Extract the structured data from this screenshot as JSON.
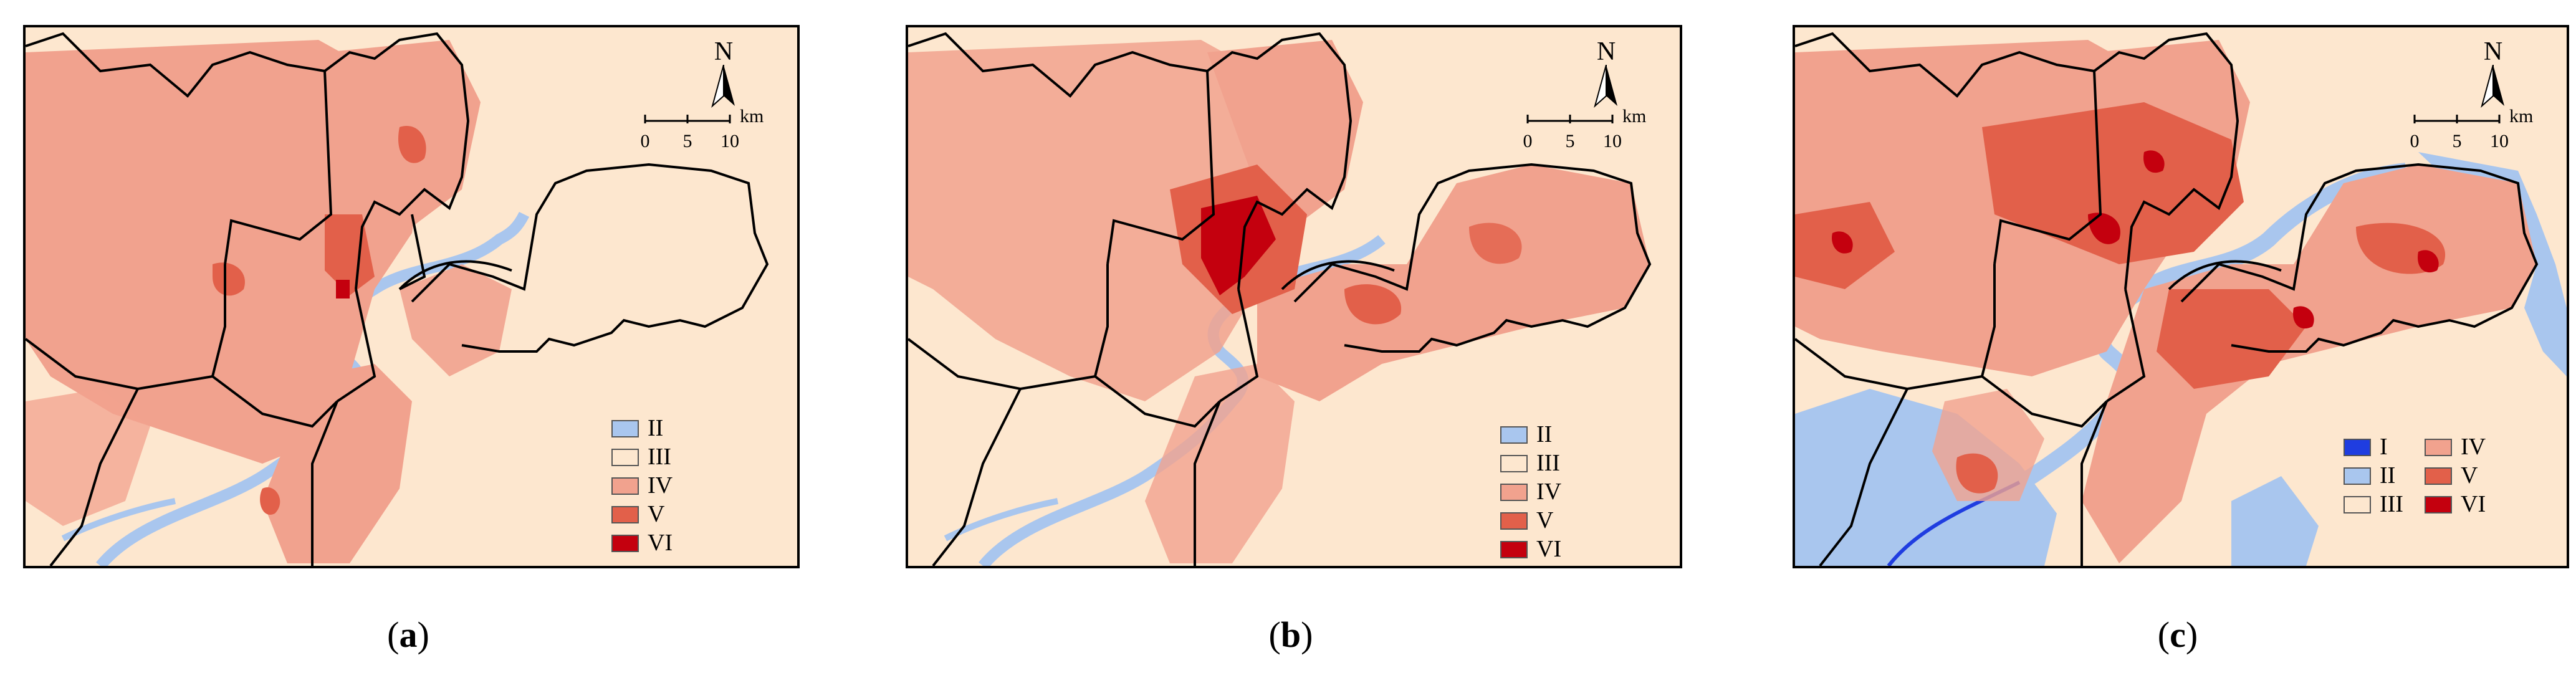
{
  "panels": [
    {
      "id": "a",
      "caption_letter": "a",
      "north_label": "N",
      "scale": {
        "ticks": [
          "0",
          "5",
          "10"
        ],
        "unit": "km"
      },
      "legend": [
        {
          "label": "II",
          "color": "#a9c6ee"
        },
        {
          "label": "III",
          "color": "#fde7cf"
        },
        {
          "label": "IV",
          "color": "#f1a28e"
        },
        {
          "label": "V",
          "color": "#e2604a"
        },
        {
          "label": "VI",
          "color": "#c4000e"
        }
      ]
    },
    {
      "id": "b",
      "caption_letter": "b",
      "north_label": "N",
      "scale": {
        "ticks": [
          "0",
          "5",
          "10"
        ],
        "unit": "km"
      },
      "legend": [
        {
          "label": "II",
          "color": "#a9c6ee"
        },
        {
          "label": "III",
          "color": "#fde7cf"
        },
        {
          "label": "IV",
          "color": "#f1a28e"
        },
        {
          "label": "V",
          "color": "#e2604a"
        },
        {
          "label": "VI",
          "color": "#c4000e"
        }
      ]
    },
    {
      "id": "c",
      "caption_letter": "c",
      "north_label": "N",
      "scale": {
        "ticks": [
          "0",
          "5",
          "10"
        ],
        "unit": "km"
      },
      "legend": [
        {
          "label": "I",
          "color": "#1f3de0"
        },
        {
          "label": "IV",
          "color": "#f1a28e"
        },
        {
          "label": "II",
          "color": "#a9c6ee"
        },
        {
          "label": "V",
          "color": "#e2604a"
        },
        {
          "label": "III",
          "color": "#fde7cf"
        },
        {
          "label": "VI",
          "color": "#c4000e"
        }
      ]
    }
  ],
  "colors": {
    "class_II": "#a9c6ee",
    "class_III": "#fde7cf",
    "class_IV": "#f1a28e",
    "class_V": "#e2604a",
    "class_VI": "#c4000e",
    "class_I": "#1f3de0",
    "boundary": "#000000"
  },
  "icons": [
    "north-arrow-icon",
    "scale-bar-icon"
  ]
}
